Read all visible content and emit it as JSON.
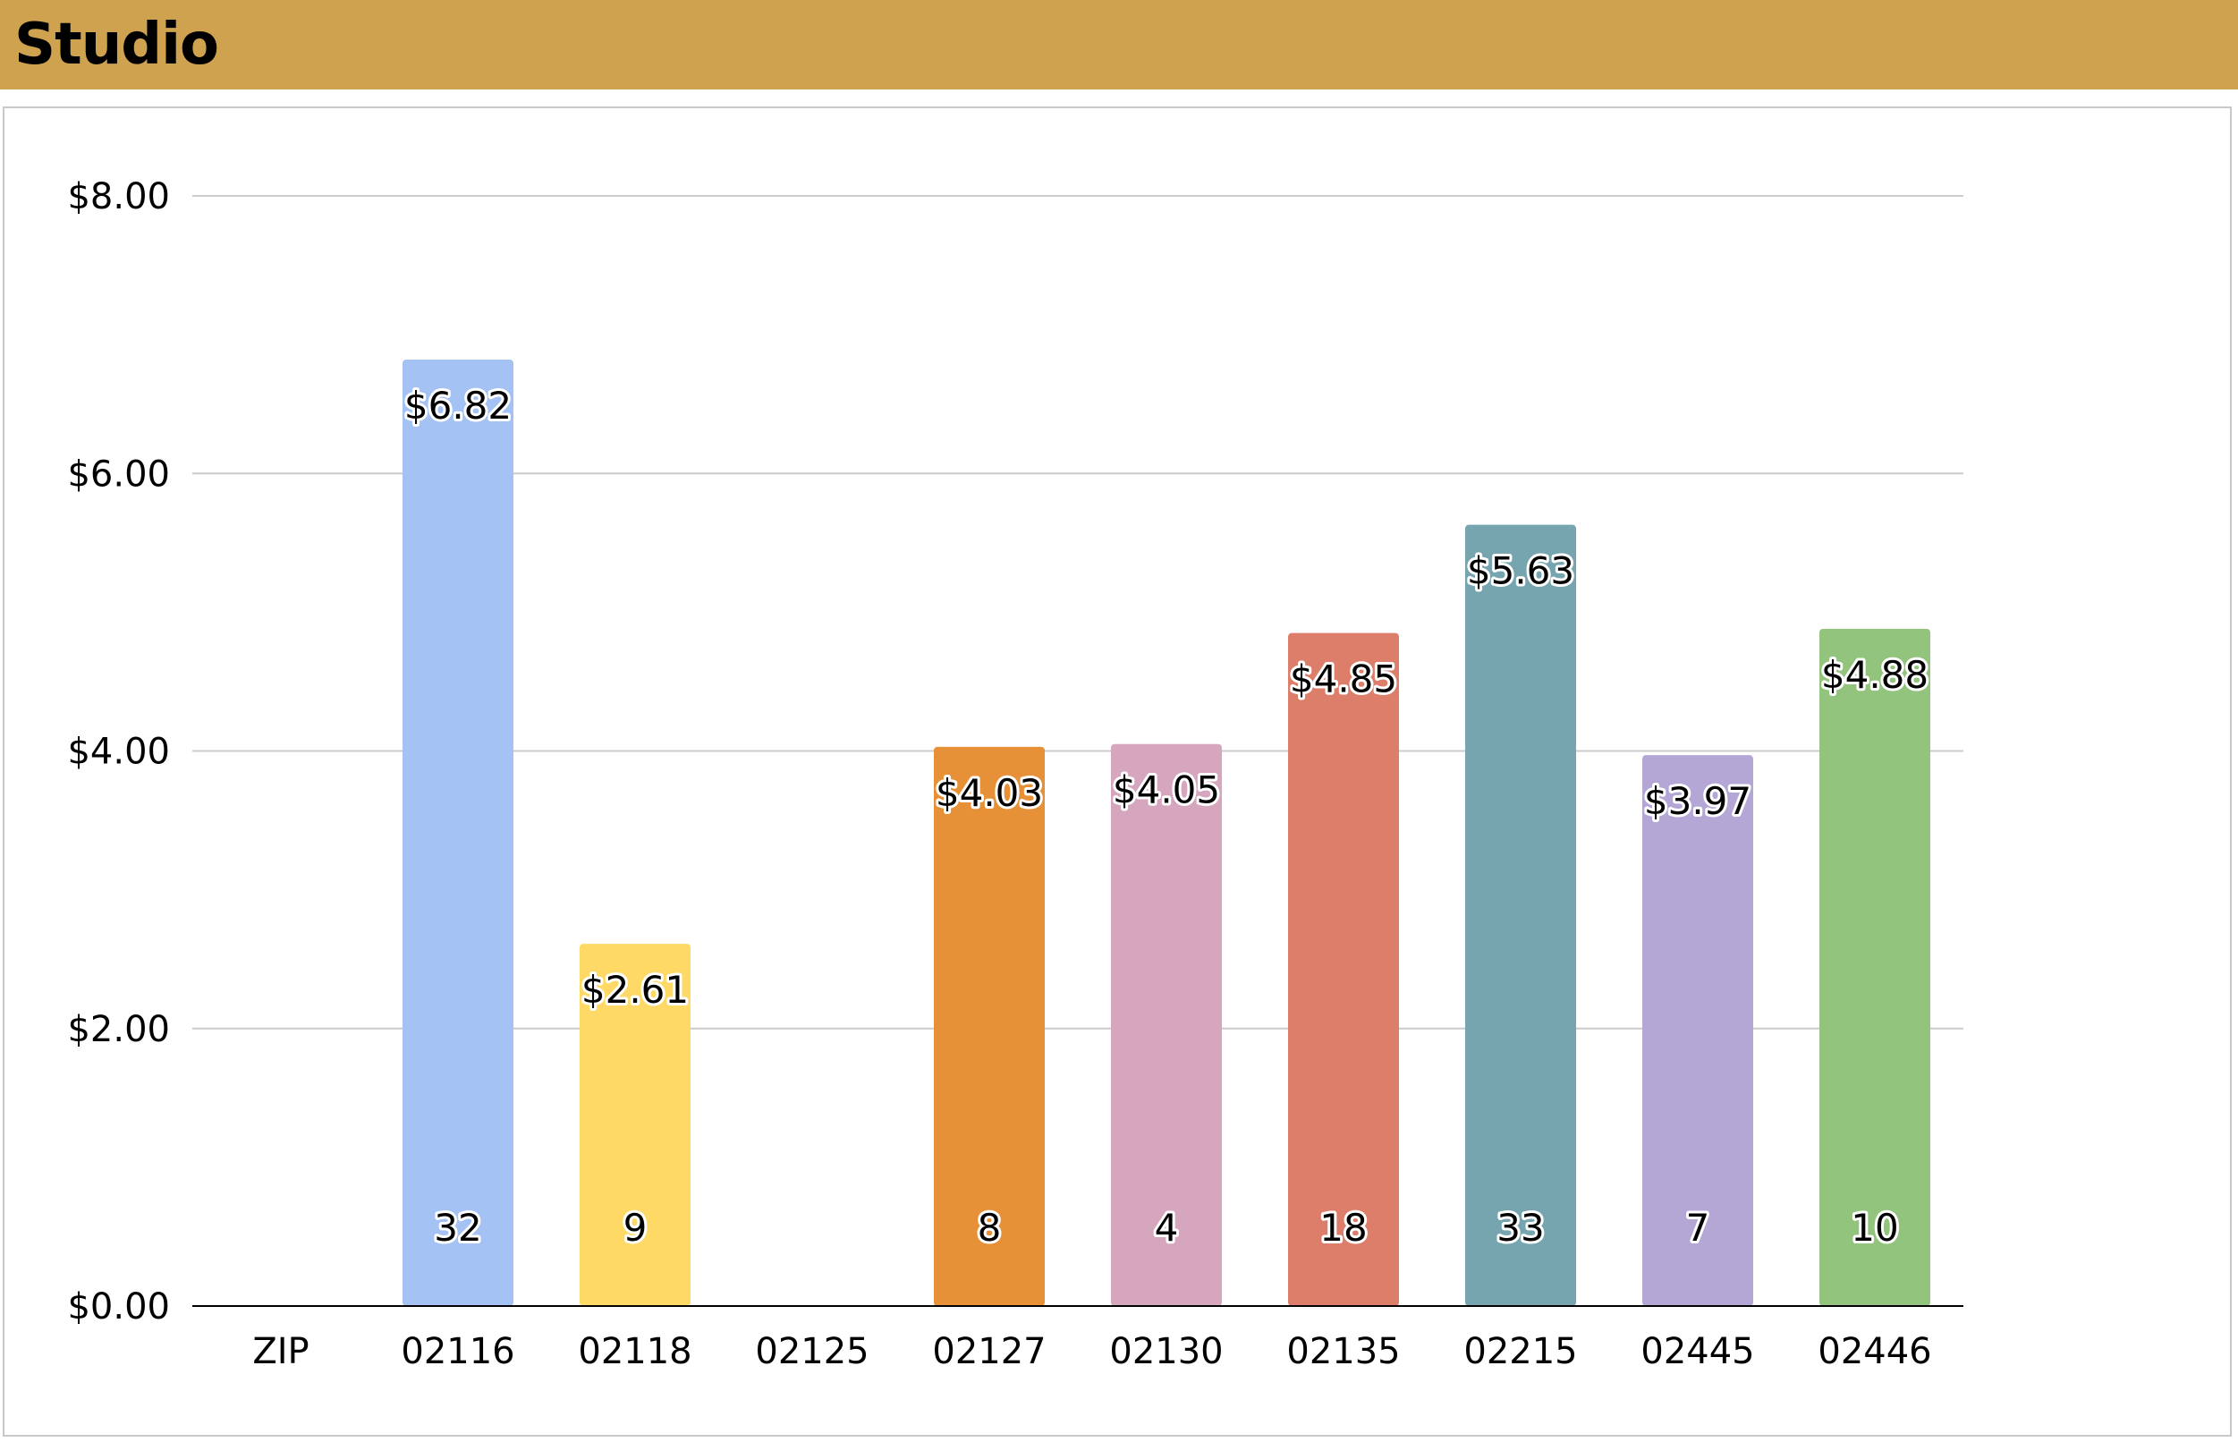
{
  "header": {
    "title": "Studio",
    "color": "#cfa250"
  },
  "chart_data": {
    "type": "bar",
    "title": "",
    "xlabel": "",
    "ylabel": "",
    "ylim": [
      0,
      8
    ],
    "y_ticks": [
      0,
      2,
      4,
      6,
      8
    ],
    "y_tick_labels": [
      "$0.00",
      "$2.00",
      "$4.00",
      "$6.00",
      "$8.00"
    ],
    "grid": true,
    "legend": "none",
    "categories": [
      "ZIP",
      "02116",
      "02118",
      "02125",
      "02127",
      "02130",
      "02135",
      "02215",
      "02445",
      "02446"
    ],
    "values": [
      null,
      6.82,
      2.61,
      null,
      4.03,
      4.05,
      4.85,
      5.63,
      3.97,
      4.88
    ],
    "value_labels": [
      "",
      "$6.82",
      "$2.61",
      "",
      "$4.03",
      "$4.05",
      "$4.85",
      "$5.63",
      "$3.97",
      "$4.88"
    ],
    "counts": [
      "",
      "32",
      "9",
      "",
      "8",
      "4",
      "18",
      "33",
      "7",
      "10"
    ],
    "colors": [
      "#ffffff",
      "#a4c2f4",
      "#ffd966",
      "#ffffff",
      "#e69138",
      "#d5a6bd",
      "#dd7e6b",
      "#76a5af",
      "#b4a7d6",
      "#93c47d"
    ]
  }
}
